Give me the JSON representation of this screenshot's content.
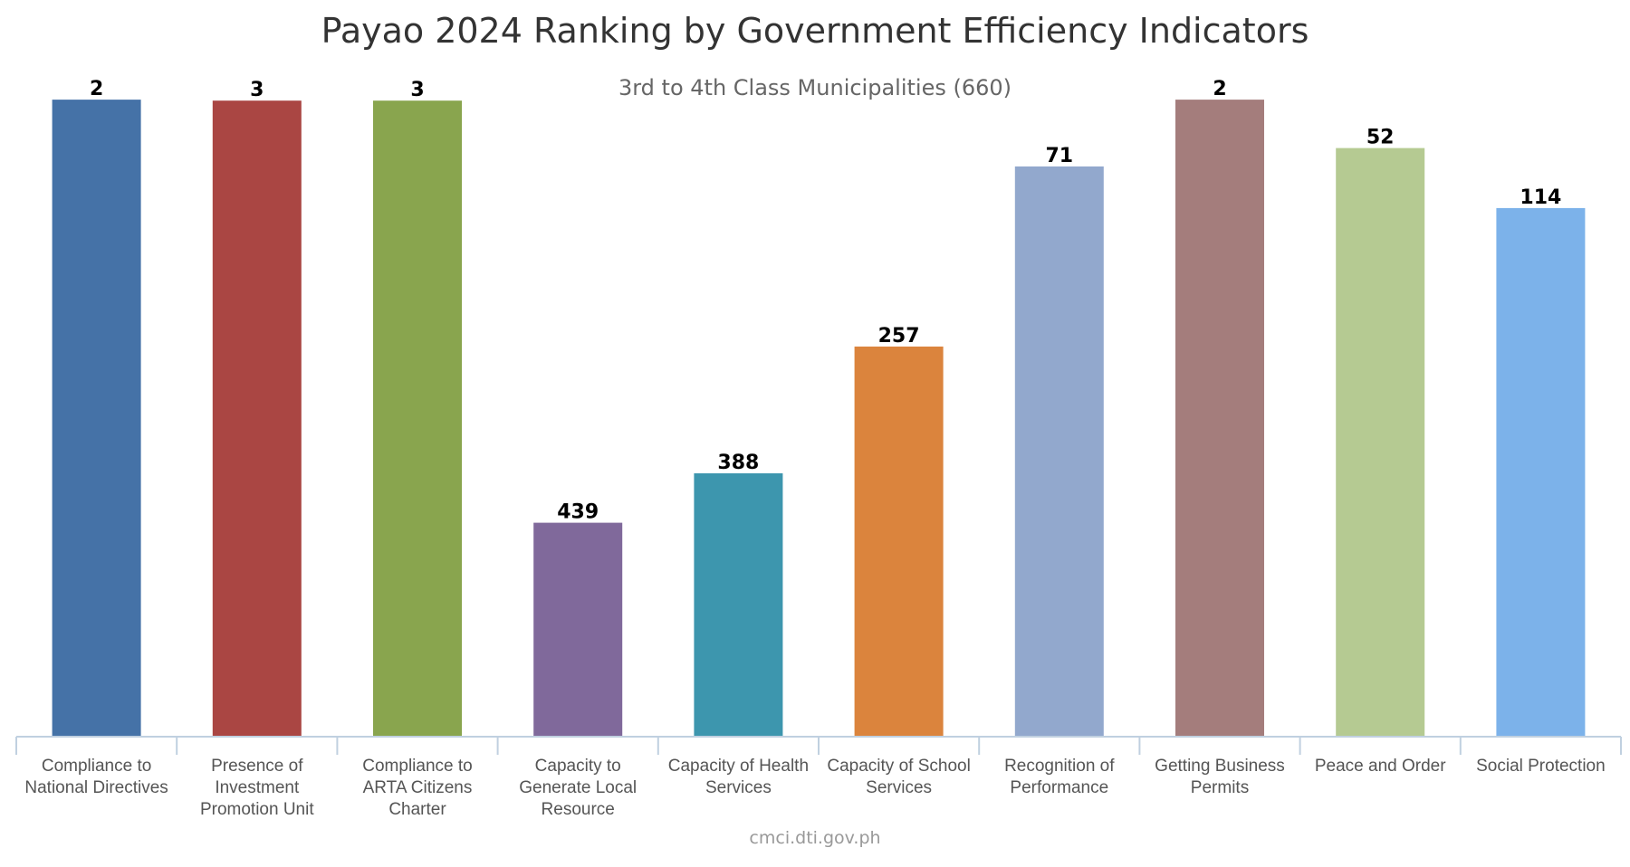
{
  "chart_data": {
    "type": "bar",
    "title": "Payao 2024 Ranking by Government Efficiency Indicators",
    "subtitle": "3rd to 4th Class Municipalities (660)",
    "credit": "cmci.dti.gov.ph",
    "categories": [
      [
        "Compliance to",
        "National Directives"
      ],
      [
        "Presence of",
        "Investment",
        "Promotion Unit"
      ],
      [
        "Compliance to",
        "ARTA Citizens",
        "Charter"
      ],
      [
        "Capacity to",
        "Generate Local",
        "Resource"
      ],
      [
        "Capacity of Health",
        "Services"
      ],
      [
        "Capacity of School",
        "Services"
      ],
      [
        "Recognition of",
        "Performance"
      ],
      [
        "Getting Business",
        "Permits"
      ],
      [
        "Peace and Order"
      ],
      [
        "Social Protection"
      ]
    ],
    "values": [
      2,
      3,
      3,
      439,
      388,
      257,
      71,
      2,
      52,
      114
    ],
    "colors": [
      "#4572a7",
      "#aa4643",
      "#89a54e",
      "#80699b",
      "#3d96ae",
      "#db843d",
      "#92a8cd",
      "#a47d7c",
      "#b5ca92",
      "#7cb2ea"
    ],
    "scale": {
      "reversed": true,
      "min": 0,
      "max": 660
    },
    "grid": false,
    "legend": "none"
  }
}
